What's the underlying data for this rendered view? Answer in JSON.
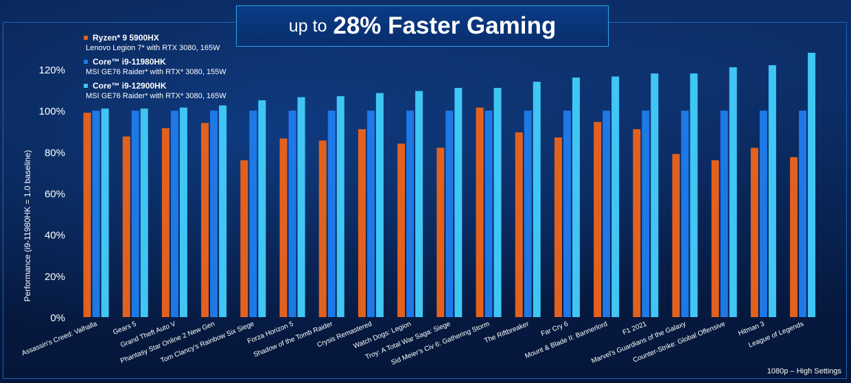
{
  "title": {
    "prefix": "up to",
    "main": "28% Faster Gaming"
  },
  "footnote": "1080p – High Settings",
  "colors": {
    "ryzen": "#e2611f",
    "i9_11980": "#1e78e6",
    "i9_12900": "#3fc6f4",
    "axis_text": "#ffffff"
  },
  "legend": [
    {
      "name": "Ryzen* 9 5900HX",
      "sub": "Lenovo Legion 7* with RTX 3080, 165W",
      "color": "#e2611f"
    },
    {
      "name": "Core™ i9-11980HK",
      "sub": "MSI GE76 Raider* with RTX* 3080, 155W",
      "color": "#1e78e6"
    },
    {
      "name": "Core™ i9-12900HK",
      "sub": "MSI GE76 Raider* with RTX* 3080, 165W",
      "color": "#3fc6f4"
    }
  ],
  "chart_data": {
    "type": "bar",
    "title": "up to 28% Faster Gaming",
    "xlabel": "",
    "ylabel": "Performance (i9-11980HK = 1.0 baseline)",
    "ylim": [
      0,
      120
    ],
    "yticks": [
      "0%",
      "20%",
      "40%",
      "60%",
      "80%",
      "100%",
      "120%"
    ],
    "grid": false,
    "legend_position": "top-left",
    "categories": [
      "Assassin's Creed: Valhalla",
      "Gears 5",
      "Grand Theft Auto V",
      "Phantasy Star Online 2 New Gen",
      "Tom Clancy's Rainbow Six Siege",
      "Forza Horizon 5",
      "Shadow of the Tomb Raider",
      "Crysis Remastered",
      "Watch Dogs: Legion",
      "Troy: A Total War Saga: Siege",
      "Sid Meier's Civ 6: Gathering Storm",
      "The Riftbreaker",
      "Far Cry 6",
      "Mount & Blade II: Bannerlord",
      "F1 2021",
      "Marvel's Guardians of the Galaxy",
      "Counter-Strike: Global Offensive",
      "Hitman 3",
      "League of Legends"
    ],
    "series": [
      {
        "name": "Ryzen* 9 5900HX",
        "values": [
          99,
          87.5,
          91.5,
          94,
          76,
          86.5,
          85.5,
          91,
          84,
          82,
          101.5,
          89.5,
          87,
          94.5,
          91,
          79,
          76,
          82,
          77.5
        ]
      },
      {
        "name": "Core™ i9-11980HK",
        "values": [
          100,
          100,
          100,
          100,
          100,
          100,
          100,
          100,
          100,
          100,
          100,
          100,
          100,
          100,
          100,
          100,
          100,
          100,
          100
        ]
      },
      {
        "name": "Core™ i9-12900HK",
        "values": [
          101,
          101,
          101.5,
          102.5,
          105,
          106.5,
          107,
          108.5,
          109.5,
          111,
          111,
          114,
          116,
          116.5,
          118,
          118,
          121,
          122,
          128
        ]
      }
    ]
  }
}
